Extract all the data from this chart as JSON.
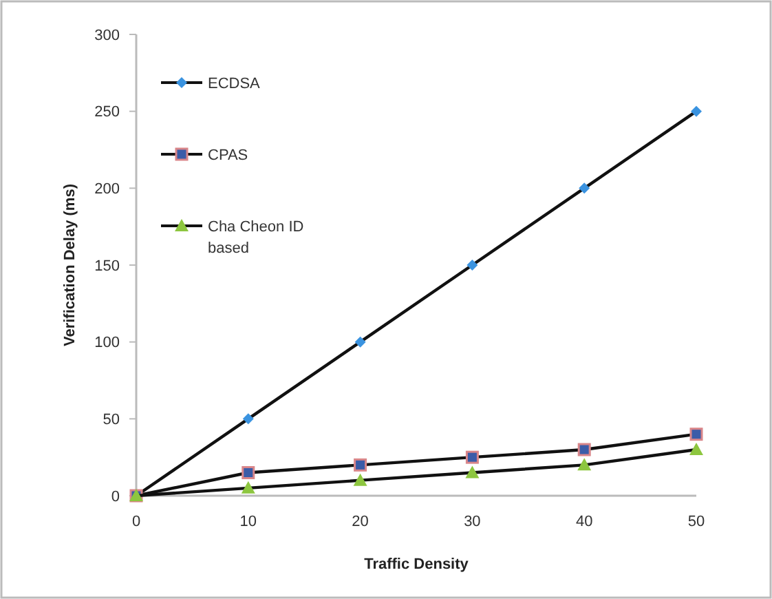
{
  "chart_data": {
    "type": "line",
    "xlabel": "Traffic Density",
    "ylabel": "Verification Delay (ms)",
    "x": [
      0,
      10,
      20,
      30,
      40,
      50
    ],
    "xlim": [
      0,
      50
    ],
    "xticks": [
      0,
      10,
      20,
      30,
      40,
      50
    ],
    "ylim": [
      0,
      300
    ],
    "yticks": [
      0,
      50,
      100,
      150,
      200,
      250,
      300
    ],
    "grid": false,
    "legend": "top left",
    "series": [
      {
        "name": "ECDSA",
        "color": "#3a93e0",
        "marker": "diamond",
        "values": [
          0,
          50,
          100,
          150,
          200,
          250
        ]
      },
      {
        "name": "CPAS",
        "color": "#3b5ca8",
        "marker": "square",
        "values": [
          0,
          15,
          20,
          25,
          30,
          40
        ]
      },
      {
        "name": "Cha Cheon ID based",
        "color": "#8dc63f",
        "marker": "triangle",
        "values": [
          0,
          5,
          10,
          15,
          20,
          30
        ]
      }
    ]
  }
}
